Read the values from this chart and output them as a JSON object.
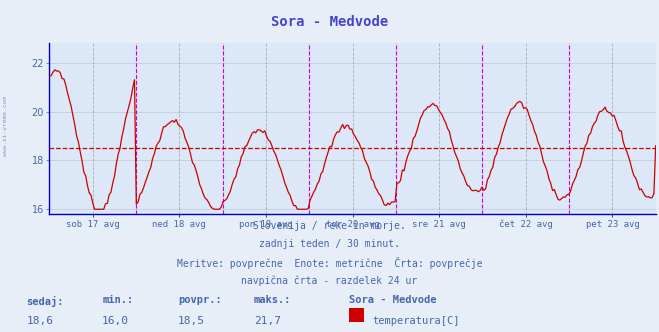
{
  "title": "Sora - Medvode",
  "title_color": "#4444cc",
  "bg_color": "#e8eef8",
  "plot_bg_color": "#dce8f8",
  "line_color": "#cc0000",
  "grid_color": "#c0c8d8",
  "axis_color": "#0000bb",
  "text_color": "#4466aa",
  "xlabel_days": [
    "sob 17 avg",
    "ned 18 avg",
    "pon 19 avg",
    "tor 20 avg",
    "sre 21 avg",
    "čet 22 avg",
    "pet 23 avg"
  ],
  "ylabel_vals": [
    16,
    18,
    20,
    22
  ],
  "ylim": [
    15.8,
    22.8
  ],
  "avg_line": 18.5,
  "avg_line_color": "#cc0000",
  "vline_color_day": "#cc00cc",
  "vline_color_noon": "#888888",
  "footnote_lines": [
    "Slovenija / reke in morje.",
    "zadnji teden / 30 minut.",
    "Meritve: povprečne  Enote: metrične  Črta: povprečje",
    "navpična črta - razdelek 24 ur"
  ],
  "stats_labels": [
    "sedaj:",
    "min.:",
    "povpr.:",
    "maks.:"
  ],
  "stats_values": [
    "18,6",
    "16,0",
    "18,5",
    "21,7"
  ],
  "legend_title": "Sora - Medvode",
  "legend_label": "temperatura[C]",
  "legend_color": "#cc0000",
  "watermark": "www.si-vreme.com",
  "n_points": 336,
  "min_val": 16.0,
  "max_val": 21.7,
  "avg_val": 18.5,
  "current_val": 18.6
}
